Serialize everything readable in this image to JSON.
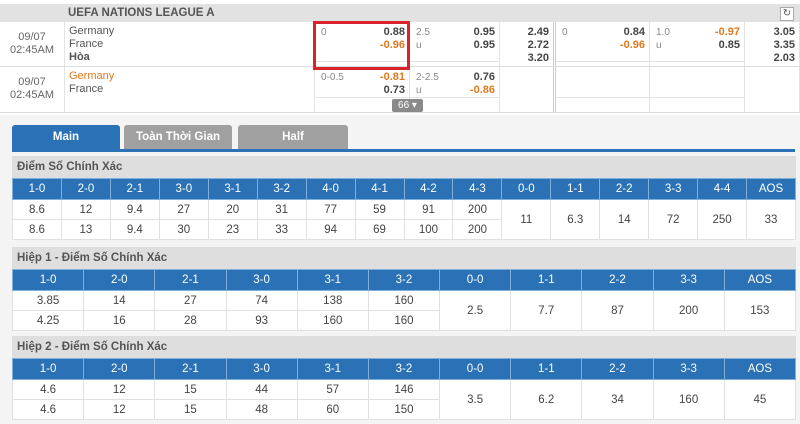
{
  "league": {
    "title": "UEFA NATIONS LEAGUE A",
    "refresh_icon": "refresh-icon"
  },
  "matches": [
    {
      "date": "09/07",
      "time": "02:45AM",
      "home": "Germany",
      "away": "France",
      "draw": "Hòa",
      "hdp": {
        "line": "0",
        "home": "0.88",
        "away": "-0.96"
      },
      "ou": {
        "line": "2.5",
        "sub": "u",
        "over": "0.95",
        "under": "0.95"
      },
      "x12": [
        "2.49",
        "2.72",
        "3.20"
      ],
      "hdp_half": {
        "line": "0",
        "home": "0.84",
        "away": "-0.96"
      },
      "ou_half": {
        "line": "1.0",
        "sub": "u",
        "over": "-0.97",
        "under": "0.85"
      },
      "x12_half": [
        "3.05",
        "3.35",
        "2.03"
      ]
    },
    {
      "date": "09/07",
      "time": "02:45AM",
      "home": "Germany",
      "away": "France",
      "hdp": {
        "line": "0-0.5",
        "home": "-0.81",
        "away": "0.73"
      },
      "ou": {
        "line": "2-2.5",
        "sub": "u",
        "over": "0.76",
        "under": "-0.86"
      },
      "more_label": "66 ▾"
    }
  ],
  "colors": {
    "accent": "#2a72b5",
    "negative": "#e07a1f",
    "highlight": "#d9232a"
  },
  "tabs": [
    {
      "label": "Main",
      "active": true
    },
    {
      "label": "Toàn Thời Gian",
      "active": false
    },
    {
      "label": "Half",
      "active": false
    }
  ],
  "sections": [
    {
      "title": "Điểm Số Chính Xác",
      "headers": [
        "1-0",
        "2-0",
        "2-1",
        "3-0",
        "3-1",
        "3-2",
        "4-0",
        "4-1",
        "4-2",
        "4-3",
        "0-0",
        "1-1",
        "2-2",
        "3-3",
        "4-4",
        "AOS"
      ],
      "row1": [
        "8.6",
        "12",
        "9.4",
        "27",
        "20",
        "31",
        "77",
        "59",
        "91",
        "200"
      ],
      "row2": [
        "8.6",
        "13",
        "9.4",
        "30",
        "23",
        "33",
        "94",
        "69",
        "100",
        "200"
      ],
      "merged": [
        "11",
        "6.3",
        "14",
        "72",
        "250",
        "33"
      ]
    },
    {
      "title": "Hiệp 1 - Điểm Số Chính Xác",
      "headers": [
        "1-0",
        "2-0",
        "2-1",
        "3-0",
        "3-1",
        "3-2",
        "0-0",
        "1-1",
        "2-2",
        "3-3",
        "AOS"
      ],
      "row1": [
        "3.85",
        "14",
        "27",
        "74",
        "138",
        "160"
      ],
      "row2": [
        "4.25",
        "16",
        "28",
        "93",
        "160",
        "160"
      ],
      "merged": [
        "2.5",
        "7.7",
        "87",
        "200",
        "153"
      ]
    },
    {
      "title": "Hiệp 2 - Điểm Số Chính Xác",
      "headers": [
        "1-0",
        "2-0",
        "2-1",
        "3-0",
        "3-1",
        "3-2",
        "0-0",
        "1-1",
        "2-2",
        "3-3",
        "AOS"
      ],
      "row1": [
        "4.6",
        "12",
        "15",
        "44",
        "57",
        "146"
      ],
      "row2": [
        "4.6",
        "12",
        "15",
        "48",
        "60",
        "150"
      ],
      "merged": [
        "3.5",
        "6.2",
        "34",
        "160",
        "45"
      ]
    }
  ]
}
